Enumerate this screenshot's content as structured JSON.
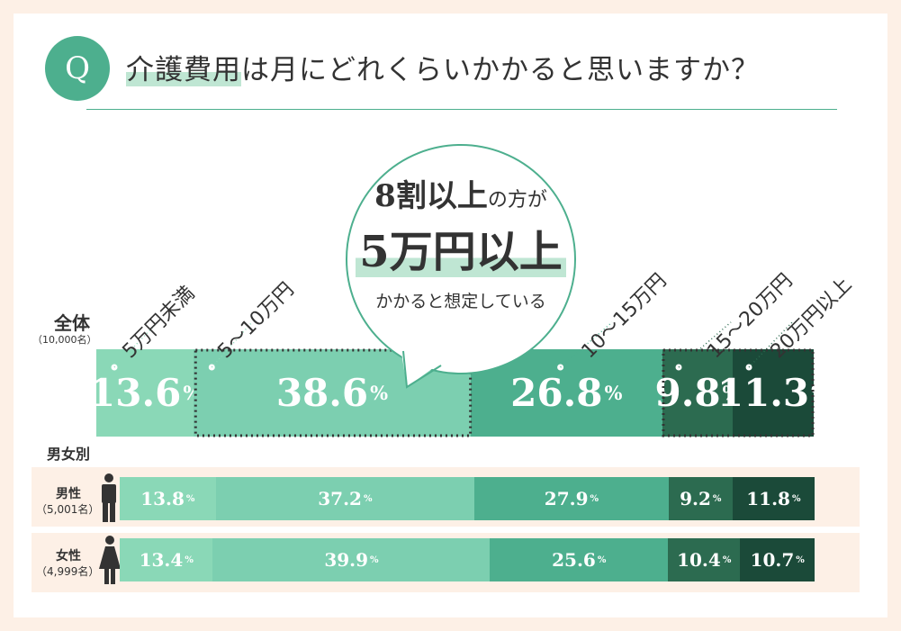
{
  "question": {
    "q_mark": "Q",
    "text_highlight": "介護費用",
    "text_rest": "は月にどれくらいかかると思いますか？"
  },
  "callout": {
    "line1_big": "8割以上",
    "line1_small": "の方が",
    "line2": "5万円以上",
    "line3": "かかると想定している"
  },
  "overall": {
    "title": "全体",
    "count": "（10,000名）"
  },
  "gender_section": {
    "title": "男女別"
  },
  "colors": [
    "#8ad8b7",
    "#7ccfb0",
    "#4daf8e",
    "#2c6b50",
    "#1b4a39"
  ],
  "icons": [
    "male-figure-icon",
    "female-figure-icon"
  ],
  "chart_data": {
    "type": "bar",
    "stacked": true,
    "orientation": "horizontal",
    "unit": "%",
    "categories": [
      "5万円未満",
      "5〜10万円",
      "10〜15万円",
      "15〜20万円",
      "20万円以上"
    ],
    "series": [
      {
        "name": "全体",
        "count": "（10,000名）",
        "values": [
          13.6,
          38.6,
          26.8,
          9.8,
          11.3
        ],
        "labels": [
          "13.6",
          "38.6",
          "26.8",
          "9.8",
          "11.3"
        ]
      },
      {
        "name": "男性",
        "count": "（5,001名）",
        "values": [
          13.8,
          37.2,
          27.9,
          9.2,
          11.8
        ],
        "labels": [
          "13.8",
          "37.2",
          "27.9",
          "9.2",
          "11.8"
        ]
      },
      {
        "name": "女性",
        "count": "（4,999名）",
        "values": [
          13.4,
          39.9,
          25.6,
          10.4,
          10.7
        ],
        "labels": [
          "13.4",
          "39.9",
          "25.6",
          "10.4",
          "10.7"
        ]
      }
    ]
  }
}
